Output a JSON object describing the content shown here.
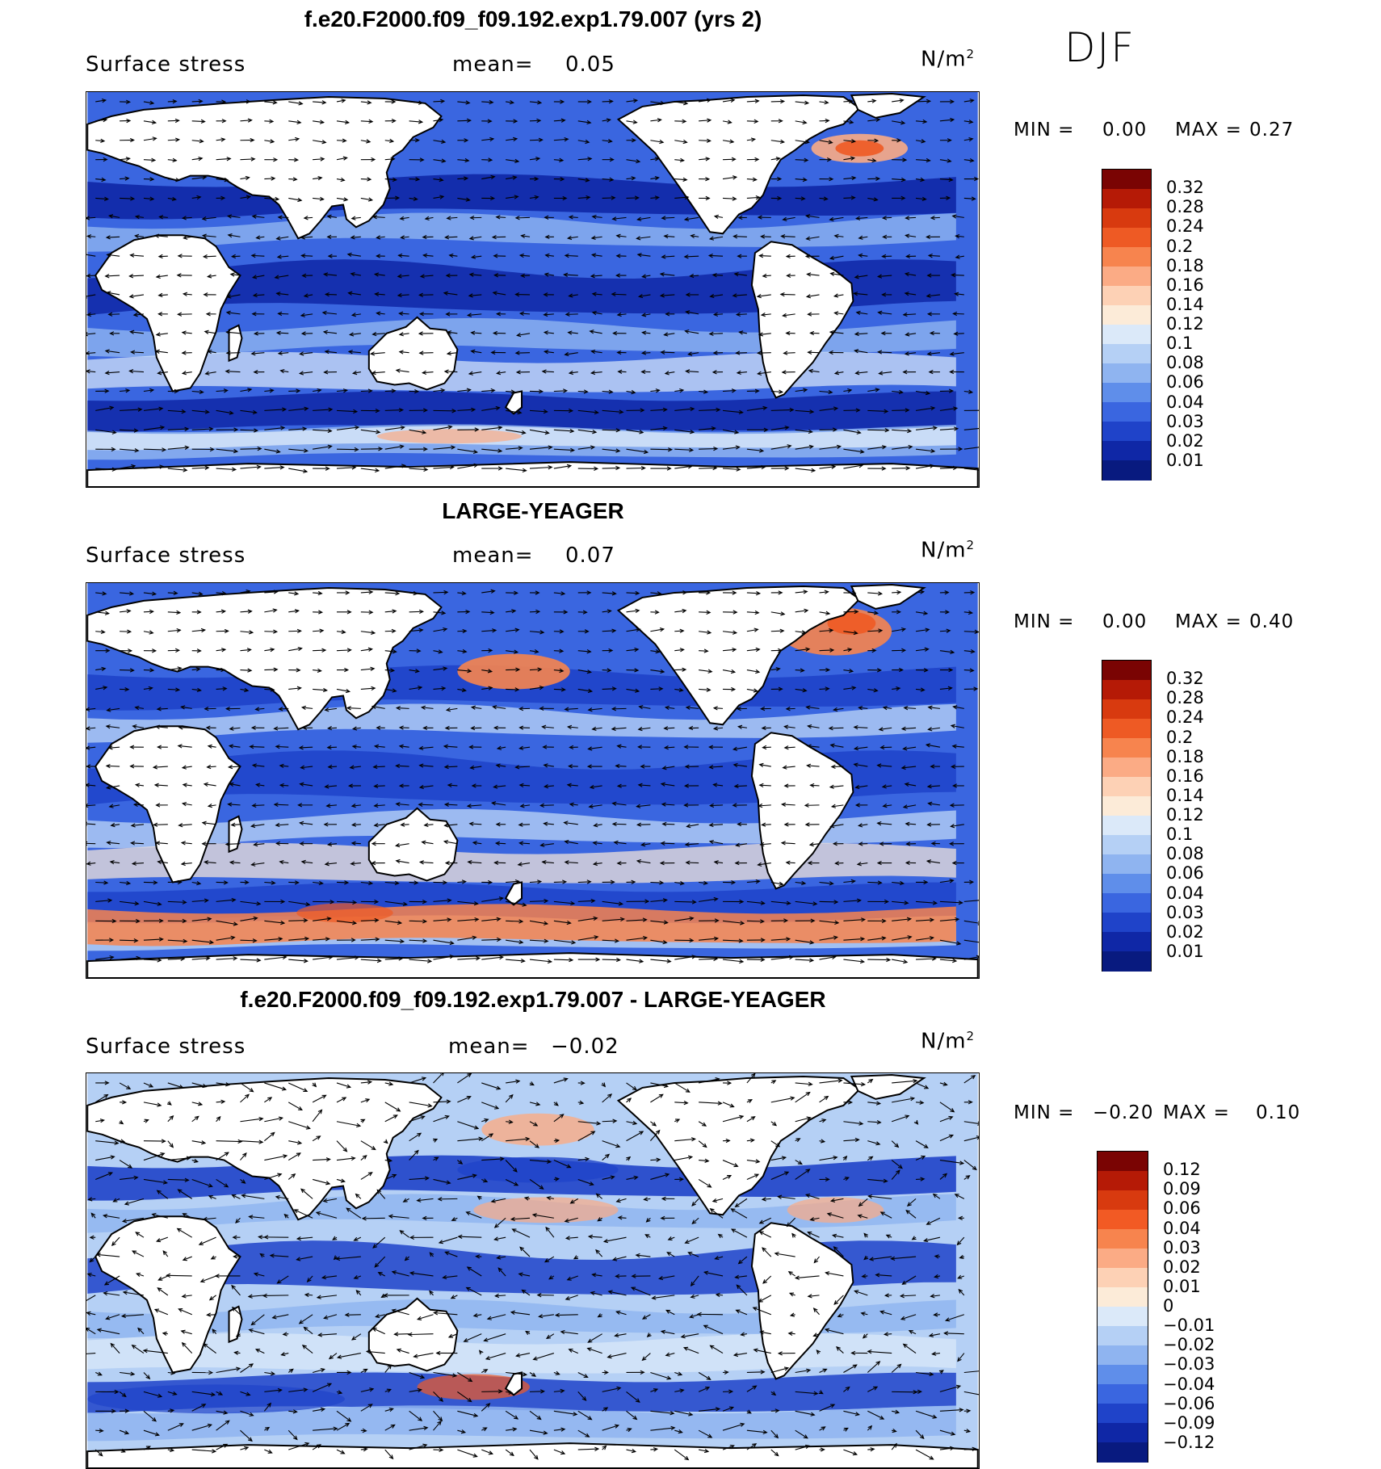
{
  "season": "DJF",
  "panels": [
    {
      "title": "f.e20.F2000.f09_f09.192.exp1.79.007 (yrs 2)",
      "variable": "Surface stress",
      "mean_label": "mean=",
      "mean_value": "0.05",
      "unit": "N/m",
      "unit_exp": "2",
      "min_label": "MIN =",
      "min_value": "0.00",
      "max_label": "MAX =",
      "max_value": "0.27",
      "colorbar_ticks": [
        "0.32",
        "0.28",
        "0.24",
        "0.2",
        "0.18",
        "0.16",
        "0.14",
        "0.12",
        "0.1",
        "0.08",
        "0.06",
        "0.04",
        "0.03",
        "0.02",
        "0.01"
      ],
      "colorbar_colors": [
        "#7a0403",
        "#b51a06",
        "#d83a0f",
        "#ee5a24",
        "#f7844e",
        "#fbab85",
        "#fdd1b5",
        "#fcebd8",
        "#dbe9f9",
        "#b5d0f5",
        "#8fb4f0",
        "#5f8eea",
        "#3a66e0",
        "#1f43c9",
        "#0f27a6",
        "#081a7f"
      ],
      "map_colors": {
        "land": "#ffffff",
        "ocean_bg": "#3a66e0",
        "band_strong": "#0f27a6",
        "band_light": "#8fb4f0",
        "band_pale": "#dbe9f9",
        "hot": "#fbab85",
        "hotter": "#ee5a24"
      }
    },
    {
      "title": "LARGE-YEAGER",
      "variable": "Surface stress",
      "mean_label": "mean=",
      "mean_value": "0.07",
      "unit": "N/m",
      "unit_exp": "2",
      "min_label": "MIN =",
      "min_value": "0.00",
      "max_label": "MAX =",
      "max_value": "0.40",
      "colorbar_ticks": [
        "0.32",
        "0.28",
        "0.24",
        "0.2",
        "0.18",
        "0.16",
        "0.14",
        "0.12",
        "0.1",
        "0.08",
        "0.06",
        "0.04",
        "0.03",
        "0.02",
        "0.01"
      ],
      "colorbar_colors": [
        "#7a0403",
        "#b51a06",
        "#d83a0f",
        "#ee5a24",
        "#f7844e",
        "#fbab85",
        "#fdd1b5",
        "#fcebd8",
        "#dbe9f9",
        "#b5d0f5",
        "#8fb4f0",
        "#5f8eea",
        "#3a66e0",
        "#1f43c9",
        "#0f27a6",
        "#081a7f"
      ],
      "map_colors": {
        "land": "#ffffff",
        "ocean_bg": "#3a66e0",
        "band_strong": "#1f43c9",
        "band_light": "#b5d0f5",
        "band_pale": "#fcebd8",
        "hot": "#f7844e",
        "hotter": "#ee5a24"
      }
    },
    {
      "title": "f.e20.F2000.f09_f09.192.exp1.79.007 - LARGE-YEAGER",
      "variable": "Surface stress",
      "mean_label": "mean=",
      "mean_value": "−0.02",
      "unit": "N/m",
      "unit_exp": "2",
      "min_label": "MIN =",
      "min_value": "−0.20",
      "max_label": "MAX =",
      "max_value": "0.10",
      "colorbar_ticks": [
        "0.12",
        "0.09",
        "0.06",
        "0.04",
        "0.03",
        "0.02",
        "0.01",
        "0",
        "−0.01",
        "−0.02",
        "−0.03",
        "−0.04",
        "−0.06",
        "−0.09",
        "−0.12"
      ],
      "colorbar_colors": [
        "#7a0403",
        "#b51a06",
        "#d83a0f",
        "#f25a24",
        "#f7844e",
        "#fbab85",
        "#fdd1b5",
        "#fcebd8",
        "#dbe9f9",
        "#b5d0f5",
        "#8fb4f0",
        "#5f8eea",
        "#3a66e0",
        "#1f43c9",
        "#0f27a6",
        "#081a7f"
      ],
      "map_colors": {
        "land": "#ffffff",
        "ocean_bg": "#b5d0f5",
        "band_strong": "#1f43c9",
        "band_light": "#8fb4f0",
        "band_pale": "#dbe9f9",
        "hot": "#fbab85",
        "hotter": "#f25a24"
      }
    }
  ]
}
